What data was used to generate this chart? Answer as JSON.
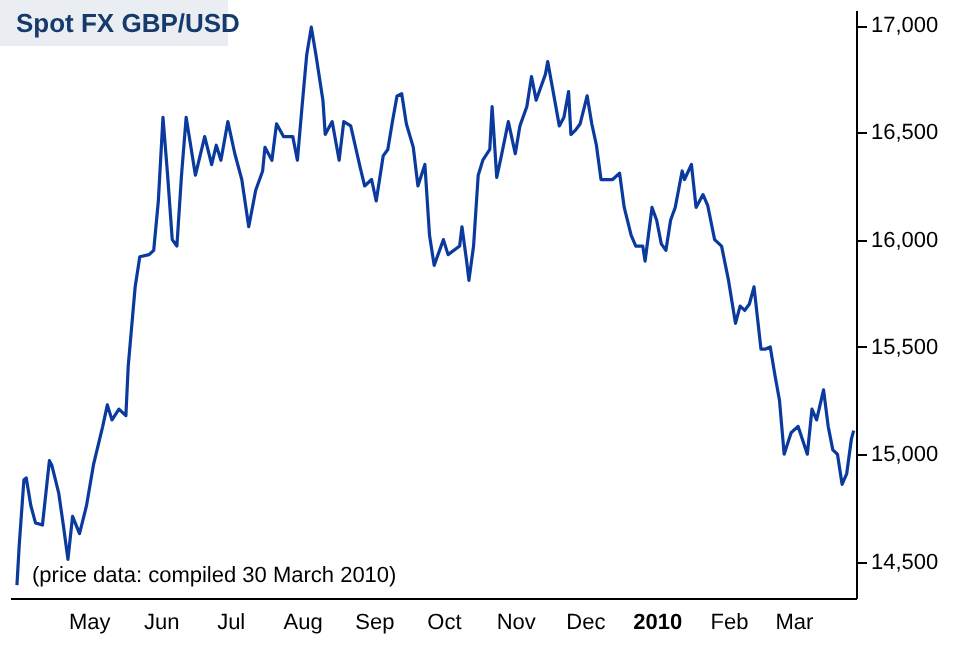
{
  "chart_data": {
    "type": "line",
    "title": "Spot FX GBP/USD",
    "annotations": [
      "(price data: compiled 30 March 2010)"
    ],
    "x": [
      "2009-03-31",
      "2009-04-01",
      "2009-04-03",
      "2009-04-04",
      "2009-04-06",
      "2009-04-08",
      "2009-04-11",
      "2009-04-14",
      "2009-04-15",
      "2009-04-18",
      "2009-04-20",
      "2009-04-22",
      "2009-04-24",
      "2009-04-27",
      "2009-04-30",
      "2009-05-03",
      "2009-05-07",
      "2009-05-09",
      "2009-05-11",
      "2009-05-14",
      "2009-05-17",
      "2009-05-18",
      "2009-05-21",
      "2009-05-23",
      "2009-05-27",
      "2009-05-29",
      "2009-05-31",
      "2009-06-02",
      "2009-06-04",
      "2009-06-06",
      "2009-06-08",
      "2009-06-10",
      "2009-06-12",
      "2009-06-16",
      "2009-06-18",
      "2009-06-20",
      "2009-06-23",
      "2009-06-25",
      "2009-06-27",
      "2009-06-30",
      "2009-07-03",
      "2009-07-06",
      "2009-07-09",
      "2009-07-12",
      "2009-07-15",
      "2009-07-16",
      "2009-07-19",
      "2009-07-21",
      "2009-07-24",
      "2009-07-28",
      "2009-07-30",
      "2009-08-01",
      "2009-08-03",
      "2009-08-05",
      "2009-08-07",
      "2009-08-10",
      "2009-08-11",
      "2009-08-14",
      "2009-08-17",
      "2009-08-19",
      "2009-08-22",
      "2009-08-26",
      "2009-08-28",
      "2009-08-31",
      "2009-09-02",
      "2009-09-05",
      "2009-09-07",
      "2009-09-09",
      "2009-09-11",
      "2009-09-13",
      "2009-09-15",
      "2009-09-18",
      "2009-09-20",
      "2009-09-23",
      "2009-09-25",
      "2009-09-27",
      "2009-10-01",
      "2009-10-03",
      "2009-10-08",
      "2009-10-09",
      "2009-10-11",
      "2009-10-12",
      "2009-10-14",
      "2009-10-16",
      "2009-10-18",
      "2009-10-21",
      "2009-10-22",
      "2009-10-24",
      "2009-10-26",
      "2009-10-29",
      "2009-11-01",
      "2009-11-03",
      "2009-11-06",
      "2009-11-08",
      "2009-11-10",
      "2009-11-12",
      "2009-11-14",
      "2009-11-15",
      "2009-11-17",
      "2009-11-20",
      "2009-11-22",
      "2009-11-24",
      "2009-11-25",
      "2009-11-27",
      "2009-11-29",
      "2009-12-02",
      "2009-12-04",
      "2009-12-06",
      "2009-12-08",
      "2009-12-13",
      "2009-12-16",
      "2009-12-18",
      "2009-12-21",
      "2009-12-23",
      "2009-12-26",
      "2009-12-27",
      "2009-12-30",
      "2010-01-01",
      "2010-01-03",
      "2010-01-05",
      "2010-01-07",
      "2010-01-09",
      "2010-01-12",
      "2010-01-13",
      "2010-01-16",
      "2010-01-18",
      "2010-01-21",
      "2010-01-23",
      "2010-01-26",
      "2010-01-29",
      "2010-02-01",
      "2010-02-04",
      "2010-02-06",
      "2010-02-08",
      "2010-02-10",
      "2010-02-12",
      "2010-02-15",
      "2010-02-17",
      "2010-02-19",
      "2010-02-21",
      "2010-02-23",
      "2010-02-25",
      "2010-02-28",
      "2010-03-03",
      "2010-03-07",
      "2010-03-09",
      "2010-03-11",
      "2010-03-14",
      "2010-03-16",
      "2010-03-18",
      "2010-03-20",
      "2010-03-22",
      "2010-03-24",
      "2010-03-26",
      "2010-03-27"
    ],
    "series": [
      {
        "color": "#0a3a9e",
        "values": [
          14390,
          14580,
          14880,
          14890,
          14760,
          14680,
          14670,
          14970,
          14950,
          14820,
          14670,
          14510,
          14710,
          14630,
          14760,
          14950,
          15130,
          15230,
          15160,
          15210,
          15180,
          15410,
          15780,
          15920,
          15930,
          15950,
          16180,
          16570,
          16300,
          16000,
          15970,
          16300,
          16570,
          16300,
          16390,
          16480,
          16350,
          16440,
          16370,
          16550,
          16400,
          16280,
          16060,
          16230,
          16320,
          16430,
          16370,
          16540,
          16480,
          16480,
          16370,
          16620,
          16860,
          16990,
          16860,
          16650,
          16490,
          16550,
          16370,
          16550,
          16530,
          16340,
          16250,
          16280,
          16180,
          16390,
          16420,
          16550,
          16670,
          16680,
          16540,
          16430,
          16250,
          16350,
          16020,
          15880,
          16000,
          15930,
          15970,
          16060,
          15900,
          15810,
          15970,
          16300,
          16370,
          16420,
          16620,
          16290,
          16390,
          16550,
          16400,
          16530,
          16620,
          16760,
          16650,
          16710,
          16770,
          16830,
          16710,
          16530,
          16570,
          16690,
          16490,
          16510,
          16540,
          16670,
          16540,
          16440,
          16280,
          16280,
          16310,
          16150,
          16020,
          15970,
          15970,
          15900,
          16150,
          16090,
          15980,
          15950,
          16090,
          16150,
          16320,
          16280,
          16350,
          16150,
          16210,
          16160,
          16000,
          15970,
          15810,
          15610,
          15690,
          15670,
          15700,
          15780,
          15490,
          15490,
          15500,
          15370,
          15250,
          15000,
          15100,
          15130,
          15000,
          15210,
          15160,
          15300,
          15130,
          15020,
          15000,
          14860,
          14910,
          15070,
          15110
        ]
      }
    ],
    "xlim": [
      "2009-03-28",
      "2010-03-28"
    ],
    "xticks": [
      {
        "value": "2009-05-01",
        "label": "May"
      },
      {
        "value": "2009-06-01",
        "label": "Jun"
      },
      {
        "value": "2009-07-01",
        "label": "Jul"
      },
      {
        "value": "2009-08-01",
        "label": "Aug"
      },
      {
        "value": "2009-09-01",
        "label": "Sep"
      },
      {
        "value": "2009-10-01",
        "label": "Oct"
      },
      {
        "value": "2009-11-01",
        "label": "Nov"
      },
      {
        "value": "2009-12-01",
        "label": "Dec"
      },
      {
        "value": "2010-01-01",
        "label": "2010"
      },
      {
        "value": "2010-02-01",
        "label": "Feb"
      },
      {
        "value": "2010-03-01",
        "label": "Mar"
      }
    ],
    "ylim": [
      14330,
      17070
    ],
    "yticks": [
      {
        "value": 14500,
        "label": "14,500"
      },
      {
        "value": 15000,
        "label": "15,000"
      },
      {
        "value": 15500,
        "label": "15,500"
      },
      {
        "value": 16000,
        "label": "16,000"
      },
      {
        "value": 16500,
        "label": "16,500"
      },
      {
        "value": 17000,
        "label": "17,000"
      }
    ],
    "grid": false,
    "marker": "none",
    "line_style": "solid"
  }
}
